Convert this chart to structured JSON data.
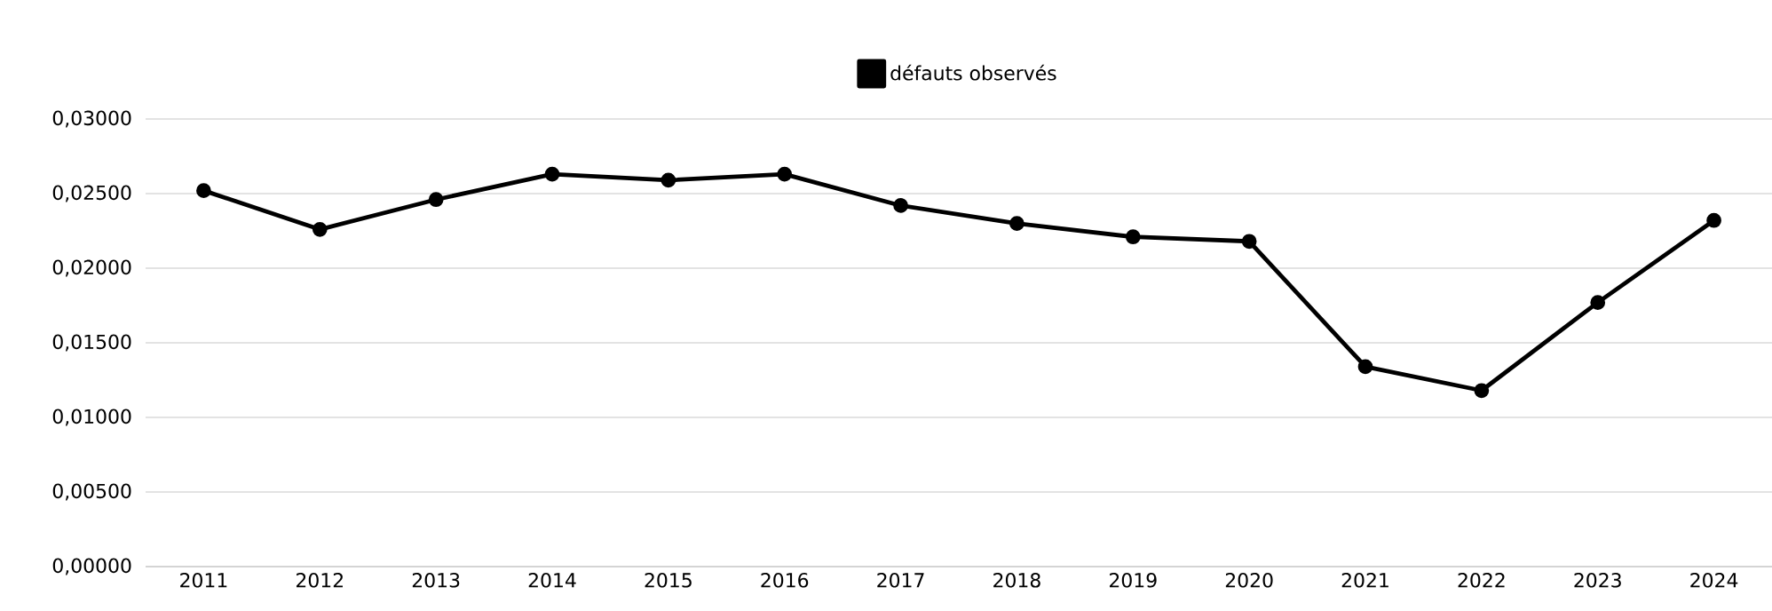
{
  "chart_data": {
    "type": "line",
    "categories": [
      "2011",
      "2012",
      "2013",
      "2014",
      "2015",
      "2016",
      "2017",
      "2018",
      "2019",
      "2020",
      "2021",
      "2022",
      "2023",
      "2024"
    ],
    "series": [
      {
        "name": "défauts observés",
        "color": "#000000",
        "values": [
          0.0252,
          0.0226,
          0.0246,
          0.0263,
          0.0259,
          0.0263,
          0.0242,
          0.023,
          0.0221,
          0.0218,
          0.0134,
          0.0118,
          0.0177,
          0.0232
        ]
      }
    ],
    "ylim": [
      0,
      0.03
    ],
    "yticks": [
      {
        "value": 0,
        "label": "0,00000"
      },
      {
        "value": 0.005,
        "label": "0,00500"
      },
      {
        "value": 0.01,
        "label": "0,01000"
      },
      {
        "value": 0.015,
        "label": "0,01500"
      },
      {
        "value": 0.02,
        "label": "0,02000"
      },
      {
        "value": 0.025,
        "label": "0,02500"
      },
      {
        "value": 0.03,
        "label": "0,03000"
      }
    ],
    "grid": "y",
    "legend": "top",
    "marker": "circle",
    "line_style": "solid"
  }
}
